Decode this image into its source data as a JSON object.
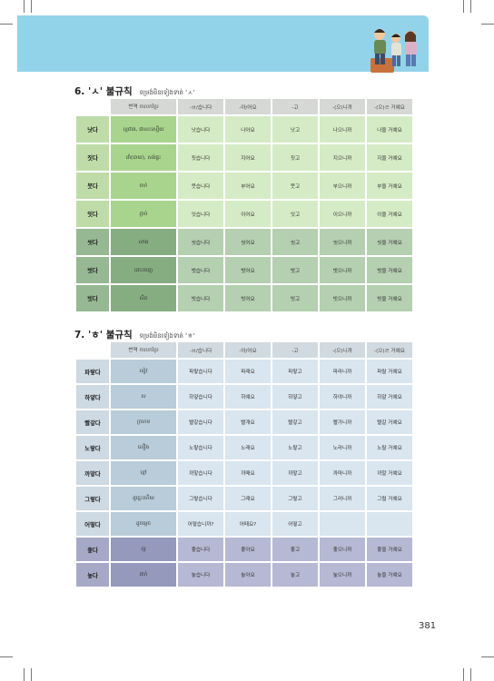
{
  "section6": {
    "number": "6.",
    "title": "'ㅅ' 불규칙",
    "subtitle": "ទម្រង់មិនទៀងទាត់ 'ㅅ'",
    "headers": [
      "",
      "번역 ការបកប្រែ",
      "-ㅂ/습니다",
      "-아/어요",
      "-고",
      "-(으)니까",
      "-(으)ㄹ 거예요"
    ],
    "rows": [
      [
        "낫다",
        "ល្អជាង, ជាសះស្បើយ",
        "낫습니다",
        "나아요",
        "낫고",
        "나으니까",
        "나을 거예요"
      ],
      [
        "짓다",
        "ដាំ(បាយ), សង់ផ្ទះ",
        "짓습니다",
        "지어요",
        "짓고",
        "지으니까",
        "지을 거예요"
      ],
      [
        "붓다",
        "ចាក់",
        "붓습니다",
        "부어요",
        "붓고",
        "부으니까",
        "부을 거예요"
      ],
      [
        "잇다",
        "ភ្ជាប់",
        "잇습니다",
        "이어요",
        "잇고",
        "이으니까",
        "이을 거예요"
      ],
      [
        "씻다",
        "លាង",
        "씻습니다",
        "씻어요",
        "씻고",
        "씻으니까",
        "씻을 거예요"
      ],
      [
        "벗다",
        "ដោះចេញ",
        "벗습니다",
        "벗어요",
        "벗고",
        "벗으니까",
        "벗을 거예요"
      ],
      [
        "빗다",
        "សិត",
        "빗습니다",
        "빗어요",
        "빗고",
        "빗으니까",
        "빗을 거예요"
      ]
    ]
  },
  "section7": {
    "number": "7.",
    "title": "'ㅎ' 불규칙",
    "subtitle": "ទម្រង់មិនទៀងទាត់ 'ㅎ'",
    "headers": [
      "",
      "번역 ការបកប្រែ",
      "-ㅂ/습니다",
      "-아/어요",
      "-고",
      "-(으)니까",
      "-(으)ㄹ 거예요"
    ],
    "rows": [
      [
        "파랗다",
        "ខៀវ",
        "파랗습니다",
        "파래요",
        "파랗고",
        "파라니까",
        "파랄 거예요"
      ],
      [
        "하얗다",
        "ស",
        "하얗습니다",
        "하얘요",
        "하얗고",
        "하야니까",
        "하얄 거예요"
      ],
      [
        "빨갛다",
        "ក្រហម",
        "빨갛습니다",
        "빨개요",
        "빨갛고",
        "빨가니까",
        "빨갈 거예요"
      ],
      [
        "노랗다",
        "លឿង",
        "노랗습니다",
        "노래요",
        "노랗고",
        "노라니까",
        "노랄 거예요"
      ],
      [
        "까맣다",
        "ខ្មៅ",
        "까맣습니다",
        "까매요",
        "까맣고",
        "까마니까",
        "까말 거예요"
      ],
      [
        "그렇다",
        "ដូច្នេះហើយ",
        "그렇습니다",
        "그래요",
        "그렇고",
        "그러니까",
        "그럴 거예요"
      ],
      [
        "어떻다",
        "ដូចម្ដេច",
        "어떻습니까?",
        "어때요?",
        "어떻고",
        "",
        ""
      ],
      [
        "좋다",
        "ល្អ",
        "좋습니다",
        "좋아요",
        "좋고",
        "좋으니까",
        "좋을 거예요"
      ],
      [
        "놓다",
        "ដាក់",
        "놓습니다",
        "놓아요",
        "놓고",
        "놓으니까",
        "놓을 거예요"
      ]
    ]
  },
  "page_number": "381",
  "colors": {
    "banner": "#93d3ea",
    "s6_light_verb": "#bfdca8",
    "s6_light_trans": "#a9d48e",
    "s6_light_cell": "#d5ebc5",
    "s6_dark_verb": "#96b893",
    "s6_dark_trans": "#86ad82",
    "s6_dark_cell": "#b5cfb1",
    "s7_light_verb": "#cdd9e3",
    "s7_light_trans": "#b8ccd9",
    "s7_light_cell": "#d9e5ef",
    "s7_dark_verb": "#a6a9c6",
    "s7_dark_trans": "#9599bb",
    "s7_dark_cell": "#b6b9d3"
  }
}
